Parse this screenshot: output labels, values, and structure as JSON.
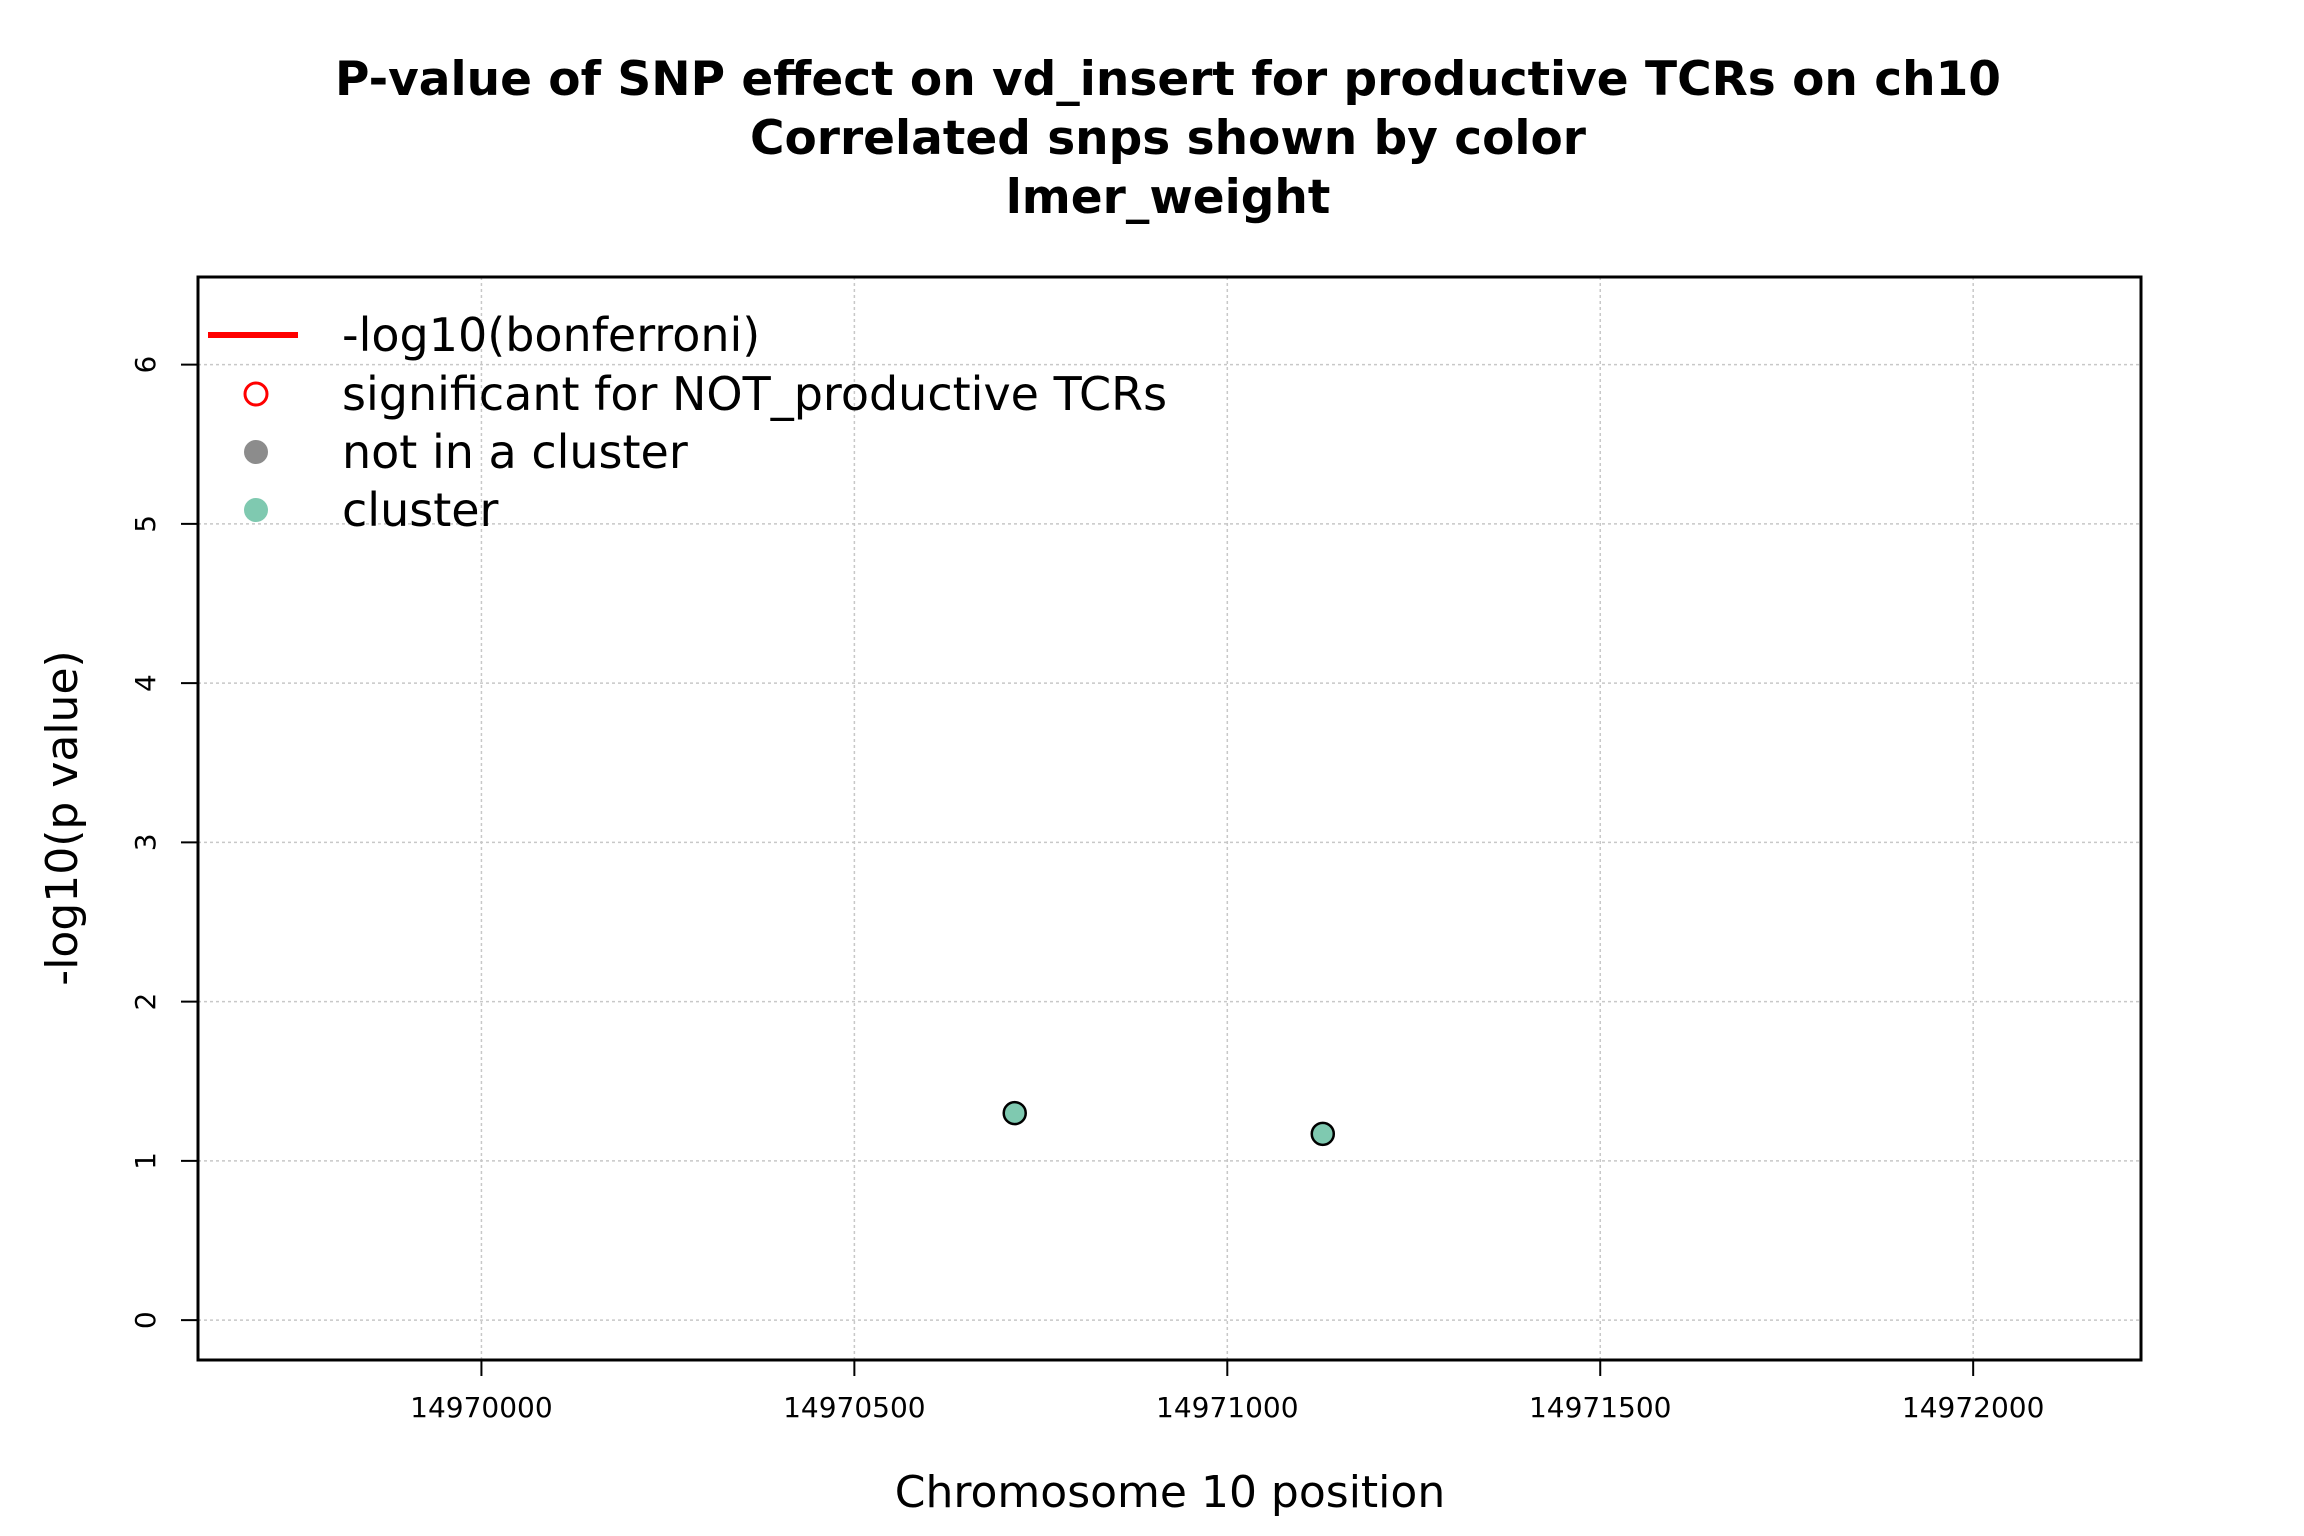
{
  "chart_data": {
    "type": "scatter",
    "title_lines": [
      "P-value of SNP effect on vd_insert for productive TCRs on ch10",
      "Correlated snps shown by color",
      "lmer_weight"
    ],
    "xlabel": "Chromosome 10 position",
    "ylabel": "-log10(p value)",
    "xlim": [
      14969620,
      14972225
    ],
    "ylim": [
      -0.25,
      6.55
    ],
    "x_ticks": [
      14970000,
      14970500,
      14971000,
      14971500,
      14972000
    ],
    "x_tick_labels": [
      "14970000",
      "14970500",
      "14971000",
      "14971500",
      "14972000"
    ],
    "y_ticks": [
      0,
      1,
      2,
      3,
      4,
      5,
      6
    ],
    "y_tick_labels": [
      "0",
      "1",
      "2",
      "3",
      "4",
      "5",
      "6"
    ],
    "grid": true,
    "legend_position": "top-left",
    "legend": [
      {
        "label": "-log10(bonferroni)",
        "symbol": "line",
        "color": "#ff0000"
      },
      {
        "label": "significant for NOT_productive TCRs",
        "symbol": "open-circle",
        "color": "#ff0000"
      },
      {
        "label": "not in a cluster",
        "symbol": "filled-circle",
        "color": "#8c8c8c"
      },
      {
        "label": "cluster",
        "symbol": "filled-circle",
        "color": "#7fc9b0"
      }
    ],
    "points": [
      {
        "x": 14970715,
        "y": 1.3,
        "group": "cluster"
      },
      {
        "x": 14971128,
        "y": 1.17,
        "group": "cluster"
      }
    ],
    "colors": {
      "cluster": "#7fc9b0",
      "not_in_cluster": "#8c8c8c",
      "bonferroni": "#ff0000",
      "grid": "#c8c8c8"
    }
  }
}
